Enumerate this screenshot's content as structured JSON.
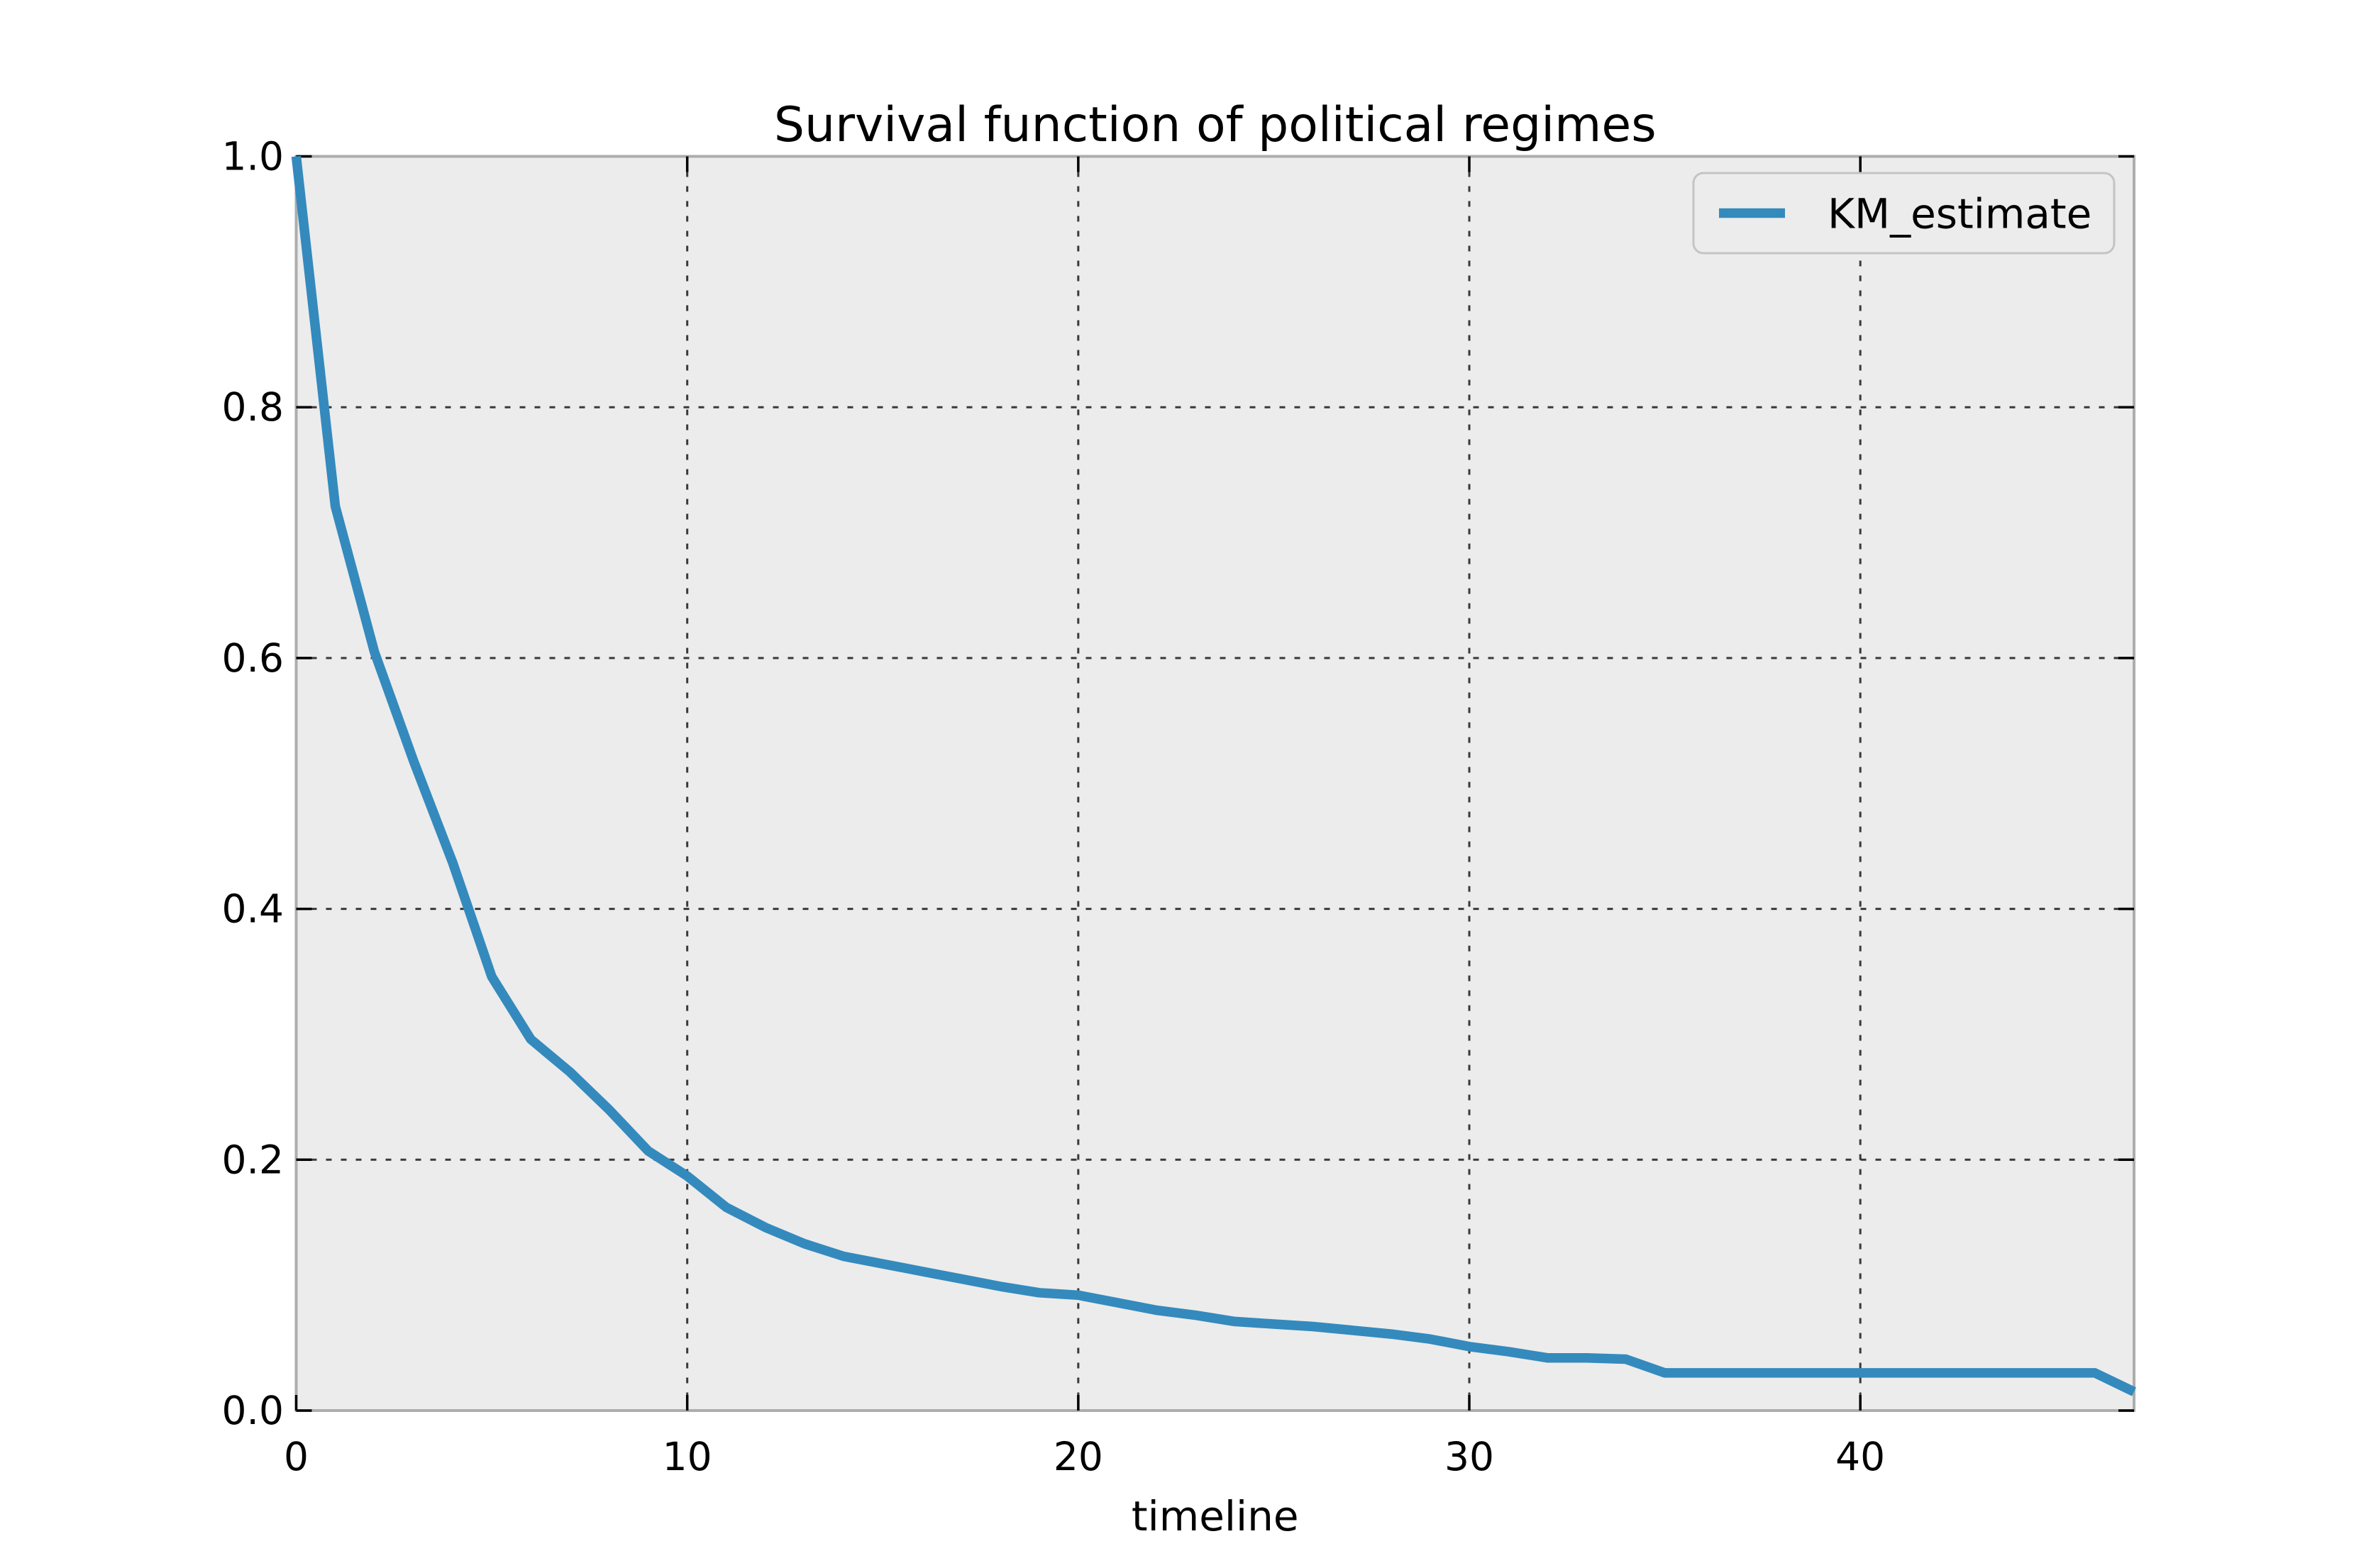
{
  "chart_data": {
    "type": "line",
    "title": "Survival function of political regimes",
    "xlabel": "timeline",
    "ylabel": "",
    "xlim": [
      0,
      47
    ],
    "ylim": [
      0,
      1.0
    ],
    "x_ticks": [
      0,
      10,
      20,
      30,
      40
    ],
    "x_tick_labels": [
      "0",
      "10",
      "20",
      "30",
      "40"
    ],
    "y_ticks": [
      0.0,
      0.2,
      0.4,
      0.6,
      0.8,
      1.0
    ],
    "y_tick_labels": [
      "0.0",
      "0.2",
      "0.4",
      "0.6",
      "0.8",
      "1.0"
    ],
    "grid": "dotted",
    "legend_position": "upper right",
    "series": [
      {
        "name": "KM_estimate",
        "color": "#348ABD",
        "x": [
          0,
          1,
          2,
          3,
          4,
          5,
          6,
          7,
          8,
          9,
          10,
          11,
          12,
          13,
          14,
          15,
          16,
          17,
          18,
          19,
          20,
          21,
          22,
          23,
          24,
          25,
          26,
          27,
          28,
          29,
          30,
          31,
          32,
          33,
          34,
          35,
          36,
          37,
          38,
          39,
          40,
          41,
          42,
          43,
          44,
          45,
          46,
          47
        ],
        "y": [
          1.0,
          0.721,
          0.605,
          0.518,
          0.437,
          0.346,
          0.296,
          0.27,
          0.24,
          0.207,
          0.187,
          0.162,
          0.146,
          0.133,
          0.123,
          0.117,
          0.111,
          0.105,
          0.099,
          0.094,
          0.092,
          0.086,
          0.08,
          0.076,
          0.071,
          0.069,
          0.067,
          0.064,
          0.061,
          0.057,
          0.051,
          0.047,
          0.042,
          0.042,
          0.041,
          0.03,
          0.03,
          0.03,
          0.03,
          0.03,
          0.03,
          0.03,
          0.03,
          0.03,
          0.03,
          0.03,
          0.03,
          0.015
        ]
      }
    ]
  },
  "colors": {
    "figure_background": "#FFFFFF",
    "axes_background": "#ECECEC",
    "grid": "#1A1A1A",
    "axes_edge": "#ADADAD",
    "tick": "#000000",
    "text": "#000000",
    "line": "#348ABD",
    "legend_border": "#C4C4C4",
    "legend_background": "#ECECEC"
  }
}
